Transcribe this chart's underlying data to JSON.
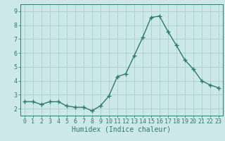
{
  "x": [
    0,
    1,
    2,
    3,
    4,
    5,
    6,
    7,
    8,
    9,
    10,
    11,
    12,
    13,
    14,
    15,
    16,
    17,
    18,
    19,
    20,
    21,
    22,
    23
  ],
  "y": [
    2.5,
    2.5,
    2.3,
    2.5,
    2.5,
    2.2,
    2.1,
    2.1,
    1.85,
    2.2,
    2.9,
    4.3,
    4.5,
    5.8,
    7.1,
    8.55,
    8.65,
    7.55,
    6.55,
    5.5,
    4.85,
    4.0,
    3.7,
    3.5
  ],
  "line_color": "#2d7a6e",
  "marker": "+",
  "marker_size": 4,
  "linewidth": 1.0,
  "bg_color": "#cce8e8",
  "grid_color": "#aacfcf",
  "axis_color": "#2d7a6e",
  "tick_color": "#2d7a6e",
  "xlabel": "Humidex (Indice chaleur)",
  "xlabel_color": "#2d7a6e",
  "xlabel_fontsize": 7,
  "ylabel_ticks": [
    2,
    3,
    4,
    5,
    6,
    7,
    8,
    9
  ],
  "ylim": [
    1.5,
    9.5
  ],
  "xlim": [
    -0.5,
    23.5
  ],
  "xticks": [
    0,
    1,
    2,
    3,
    4,
    5,
    6,
    7,
    8,
    9,
    10,
    11,
    12,
    13,
    14,
    15,
    16,
    17,
    18,
    19,
    20,
    21,
    22,
    23
  ],
  "xtick_labels": [
    "0",
    "1",
    "2",
    "3",
    "4",
    "5",
    "6",
    "7",
    "8",
    "9",
    "10",
    "11",
    "12",
    "13",
    "14",
    "15",
    "16",
    "17",
    "18",
    "19",
    "20",
    "21",
    "22",
    "23"
  ],
  "tick_fontsize": 6,
  "marker_edge_width": 1.0
}
